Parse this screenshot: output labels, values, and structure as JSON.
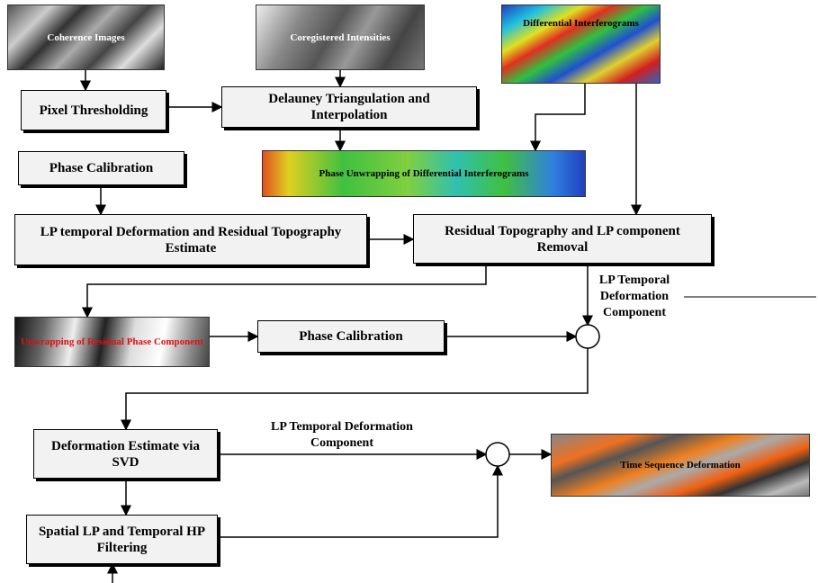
{
  "images": {
    "coherence": "Coherence Images",
    "coregistered": "Coregistered Intensities",
    "differential": "Differential Interferograms",
    "phase_unwrapping": "Phase Unwrapping of Differential Interferograms",
    "residual_unwrapping": "Unwrapping of Residual Phase Component",
    "time_sequence": "Time Sequence Deformation"
  },
  "boxes": {
    "pixel_thresholding": "Pixel Thresholding",
    "delauney": "Delauney Triangulation and Interpolation",
    "phase_calibration_1": "Phase Calibration",
    "lp_estimate": "LP temporal Deformation and Residual Topography Estimate",
    "residual_removal": "Residual Topography and LP component Removal",
    "phase_calibration_2": "Phase Calibration",
    "svd": "Deformation Estimate via SVD",
    "filtering": "Spatial LP and Temporal HP Filtering"
  },
  "labels": {
    "lp_component_1": "LP Temporal Deformation Component",
    "lp_component_2": "LP Temporal Deformation Component"
  }
}
